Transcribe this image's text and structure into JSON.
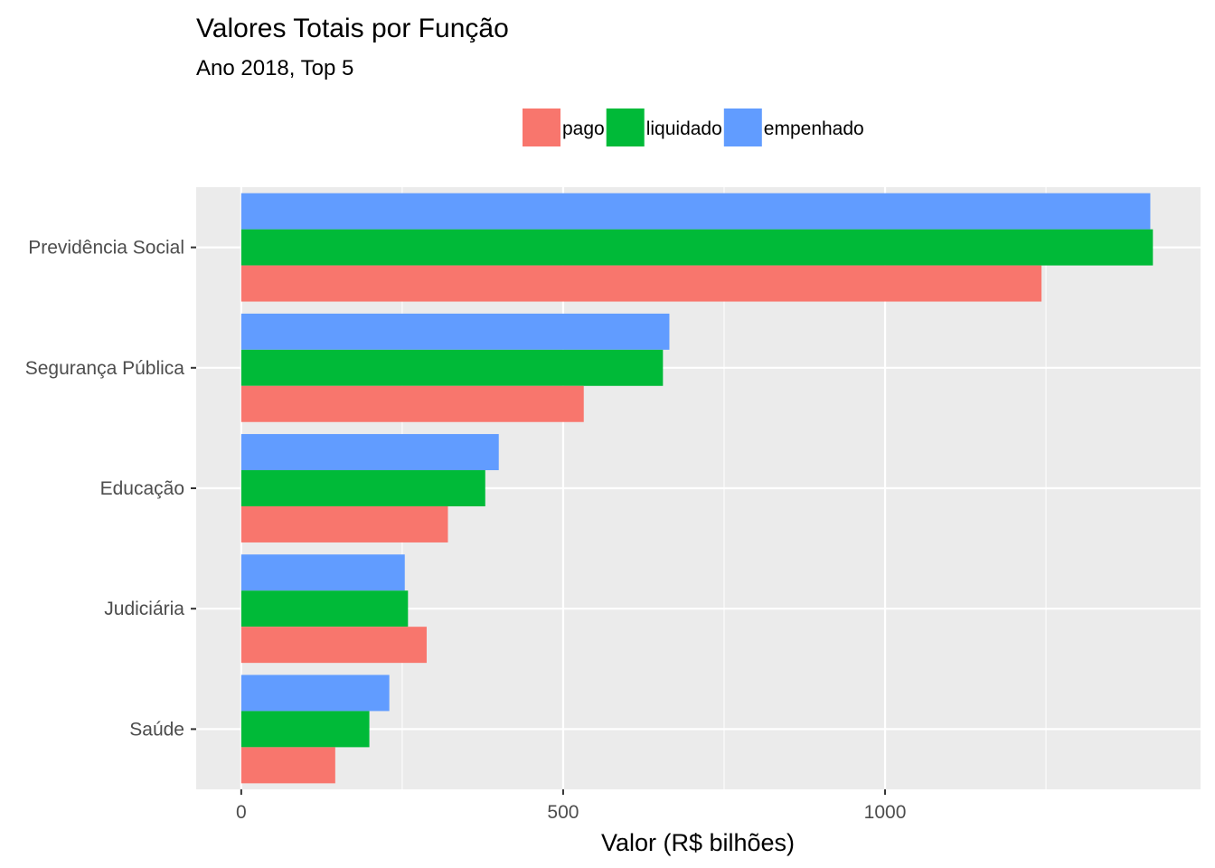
{
  "chart_data": {
    "type": "bar",
    "orientation": "horizontal",
    "title": "Valores Totais por Função",
    "subtitle": "Ano 2018, Top 5",
    "xlabel": "Valor (R$ bilhões)",
    "ylabel": "",
    "xlim": [
      -70,
      1490
    ],
    "x_ticks": [
      0,
      500,
      1000
    ],
    "x_minor_ticks": [
      250,
      750,
      1250
    ],
    "categories": [
      "Previdência Social",
      "Segurança Pública",
      "Educação",
      "Judiciária",
      "Saúde"
    ],
    "series": [
      {
        "name": "pago",
        "color": "#F8766D",
        "values": [
          1243,
          532,
          321,
          288,
          146
        ]
      },
      {
        "name": "liquidado",
        "color": "#00BA38",
        "values": [
          1416,
          655,
          379,
          259,
          199
        ]
      },
      {
        "name": "empenhado",
        "color": "#619CFF",
        "values": [
          1412,
          665,
          400,
          254,
          230
        ]
      }
    ],
    "legend_position": "top",
    "grid": true,
    "panel_background": "#EBEBEB",
    "grid_color": "#FFFFFF"
  }
}
